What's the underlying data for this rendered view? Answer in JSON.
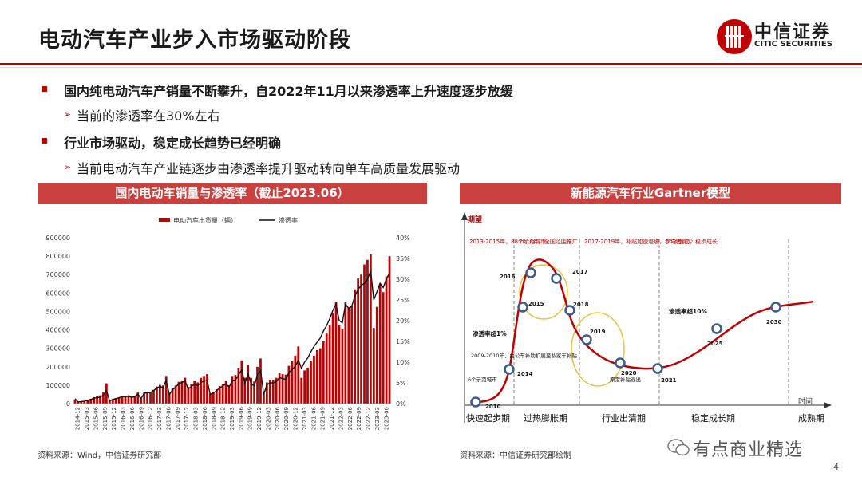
{
  "header": {
    "title": "电动汽车产业步入市场驱动阶段",
    "logo_cn": "中信证券",
    "logo_en": "CITIC SECURITIES"
  },
  "bullets": [
    "国内纯电动汽车产销量不断攀升，自2022年11月以来渗透率上升速度逐步放缓",
    "当前的渗透率在30%左右",
    "行业市场驱动，稳定成长趋势已经明确",
    "当前电动汽车产业链逐步由渗透率提升驱动转向单车高质量发展驱动"
  ],
  "left_panel": {
    "title": "国内电动车销量与渗透率（截止2023.06）",
    "source": "资料来源：Wind，中信证券研究部"
  },
  "right_panel": {
    "title": "新能源汽车行业Gartner模型",
    "source": "资料来源：中信证券研究部绘制"
  },
  "watermark": "有点商业精选",
  "page_number": "4",
  "colors": {
    "accent": "#c00000",
    "header_bar": "#c9403f",
    "curve": "#c00000",
    "node": "#3a5a8a",
    "ellipse": "#e8c23a"
  },
  "chart_data": [
    {
      "type": "bar",
      "title": "国内电动车销量与渗透率（截止2023.06）",
      "legend": [
        "电动汽车出货量（辆）",
        "渗透率"
      ],
      "legend_position": "top",
      "y_left": {
        "range": [
          0,
          900000
        ],
        "ticks": [
          "900000",
          "800000",
          "700000",
          "600000",
          "500000",
          "400000",
          "300000",
          "200000",
          "100000",
          "0"
        ]
      },
      "y_right": {
        "range": [
          0,
          40
        ],
        "ticks": [
          "40%",
          "35%",
          "30%",
          "25%",
          "20%",
          "15%",
          "10%",
          "5%",
          "0%"
        ]
      },
      "x_tick_labels": [
        "2014-12",
        "2015-03",
        "2015-06",
        "2015-09",
        "2015-12",
        "2016-03",
        "2016-06",
        "2016-09",
        "2016-12",
        "2017-03",
        "2017-06",
        "2017-09",
        "2017-12",
        "2018-03",
        "2018-06",
        "2018-09",
        "2018-12",
        "2019-03",
        "2019-06",
        "2019-09",
        "2019-12",
        "2020-03",
        "2020-06",
        "2020-09",
        "2020-12",
        "2021-03",
        "2021-06",
        "2021-09",
        "2021-12",
        "2022-03",
        "2022-06",
        "2022-09",
        "2022-12",
        "2023-03",
        "2023-06"
      ],
      "monthly_sales": [
        22000,
        8000,
        10000,
        14000,
        20000,
        25000,
        35000,
        40000,
        45000,
        60000,
        110000,
        15000,
        25000,
        30000,
        35000,
        42000,
        40000,
        45000,
        38000,
        42000,
        60000,
        30000,
        62000,
        65000,
        65000,
        75000,
        93000,
        102000,
        98000,
        150000,
        55000,
        82000,
        98000,
        118000,
        125000,
        140000,
        90000,
        105000,
        125000,
        115000,
        140000,
        150000,
        160000,
        55000,
        65000,
        78000,
        95000,
        105000,
        125000,
        100000,
        150000,
        155000,
        195000,
        235000,
        140000,
        210000,
        140000,
        120000,
        200000,
        245000,
        55000,
        115000,
        130000,
        130000,
        140000,
        168000,
        160000,
        157000,
        205000,
        230000,
        260000,
        310000,
        140000,
        180000,
        195000,
        230000,
        260000,
        290000,
        300000,
        340000,
        380000,
        425000,
        490000,
        550000,
        425000,
        405000,
        550000,
        520000,
        530000,
        620000,
        680000,
        700000,
        755000,
        780000,
        810000,
        410000,
        525000,
        650000,
        605000,
        690000,
        800000
      ],
      "penetration_pct": [
        1.2,
        0.4,
        0.5,
        0.6,
        0.8,
        1.0,
        1.3,
        1.4,
        1.6,
        2.0,
        3.2,
        0.6,
        1.0,
        1.2,
        1.4,
        1.7,
        1.6,
        1.8,
        1.5,
        1.7,
        2.3,
        1.2,
        2.5,
        2.6,
        2.7,
        3.1,
        3.8,
        4.1,
        3.9,
        5.6,
        2.2,
        3.3,
        4.0,
        4.8,
        5.1,
        5.5,
        3.5,
        4.1,
        4.7,
        4.3,
        5.1,
        5.4,
        5.6,
        2.2,
        2.6,
        3.1,
        3.8,
        4.2,
        4.8,
        3.9,
        5.6,
        5.7,
        6.9,
        8.2,
        4.9,
        7.2,
        4.8,
        4.2,
        6.9,
        8.0,
        2.2,
        4.5,
        5.0,
        5.0,
        5.3,
        6.3,
        6.0,
        5.9,
        7.5,
        8.2,
        9.0,
        10.5,
        8.5,
        10.0,
        11.0,
        12.5,
        13.8,
        14.8,
        15.8,
        17.5,
        18.8,
        20.5,
        22.5,
        24.0,
        20.0,
        19.5,
        24.0,
        23.0,
        23.5,
        26.0,
        27.5,
        28.5,
        29.0,
        30.0,
        32.0,
        25.0,
        27.0,
        29.0,
        28.0,
        30.0,
        31.5
      ]
    },
    {
      "type": "line",
      "title": "新能源汽车行业Gartner模型",
      "y_axis_label": "期望",
      "x_axis_label": "时间",
      "phases": [
        "快速起步期",
        "过热膨胀期",
        "行业出清期",
        "稳定成长期",
        "成熟期"
      ],
      "year_nodes": [
        "2010",
        "2014",
        "2015",
        "2016",
        "2017",
        "2018",
        "2019",
        "2020",
        "2021",
        "2025",
        "2030"
      ],
      "period_notes": [
        "2013-2015年，88个示范城市",
        "2016年，全国范围推广",
        "2017-2019年，补贴加速退坡，参与者减少",
        "市场驱动，稳步成长"
      ],
      "annotations": [
        "2009-2010年，由公车补助扩展至私家车补贴",
        "6个示范城市",
        "渗透率超1%",
        "原定补贴退出",
        "渗透率超10%"
      ]
    }
  ]
}
